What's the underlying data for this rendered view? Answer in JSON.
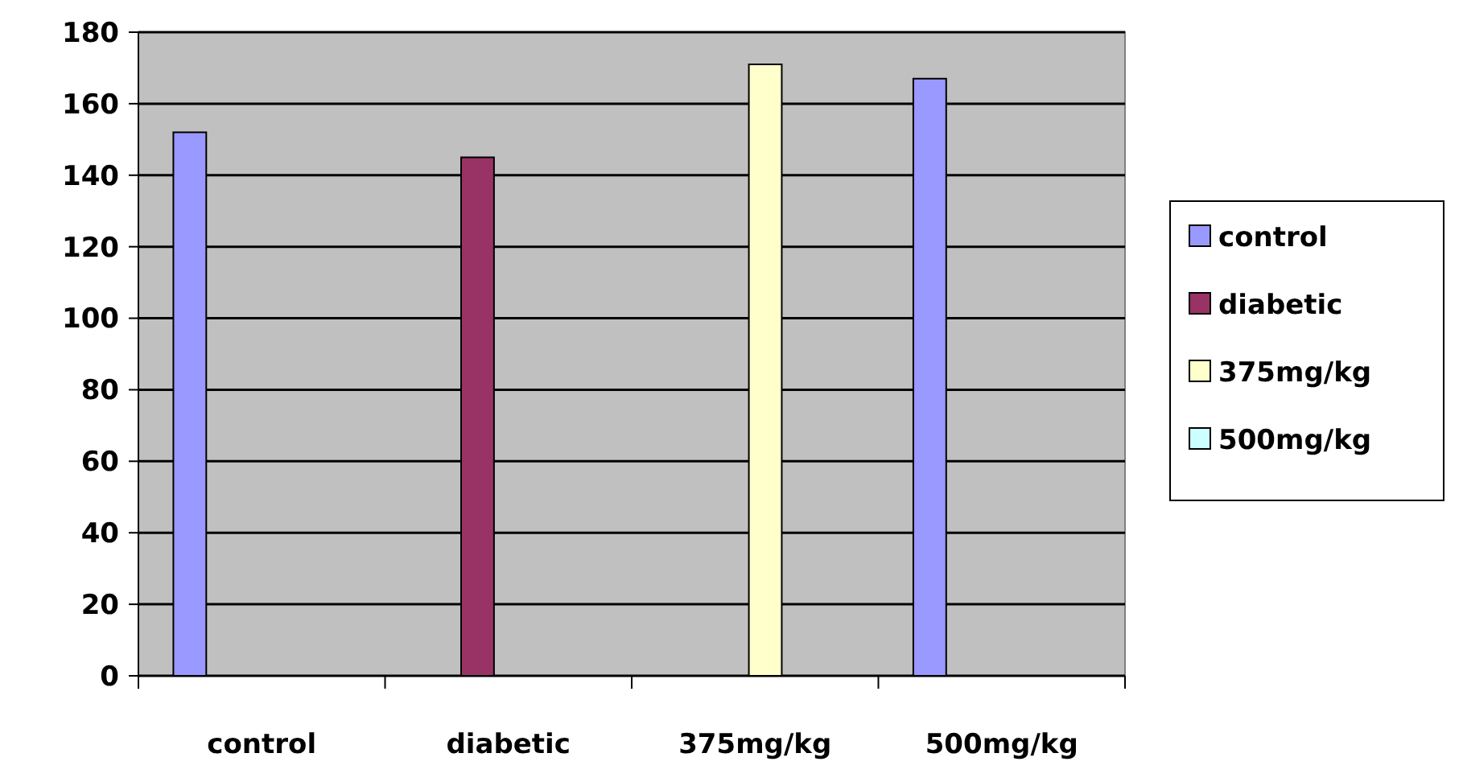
{
  "chart_data": {
    "type": "bar",
    "categories": [
      "control",
      "diabetic",
      "375mg/kg",
      "500mg/kg"
    ],
    "series": [
      {
        "name": "control",
        "color": "#9999ff",
        "values": [
          152,
          0,
          0,
          167
        ]
      },
      {
        "name": "diabetic",
        "color": "#993366",
        "values": [
          0,
          145,
          0,
          0
        ]
      },
      {
        "name": "375mg/kg",
        "color": "#ffffcc",
        "values": [
          0,
          0,
          171,
          0
        ]
      },
      {
        "name": "500mg/kg",
        "color": "#ccffff",
        "values": [
          null,
          null,
          null,
          null
        ]
      }
    ],
    "ylim": [
      0,
      180
    ],
    "yticks": [
      0,
      20,
      40,
      60,
      80,
      100,
      120,
      140,
      160,
      180
    ],
    "grid": "y",
    "legend": "right"
  }
}
